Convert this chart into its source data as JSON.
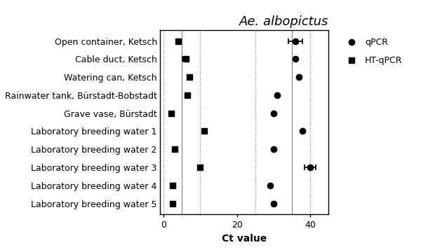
{
  "title": "Ae. albopictus",
  "xlabel": "Ct value",
  "categories": [
    "Open container, Ketsch",
    "Cable duct, Ketsch",
    "Watering can, Ketsch",
    "Rainwater tank, Bürstadt-Bobstadt",
    "Grave vase, Bürstadt",
    "Laboratory breeding water 1",
    "Laboratory breeding water 2",
    "Laboratory breeding water 3",
    "Laboratory breeding water 4",
    "Laboratory breeding water 5"
  ],
  "qpcr_values": [
    36.0,
    36.0,
    37.0,
    31.0,
    30.0,
    38.0,
    30.0,
    40.0,
    29.0,
    30.0
  ],
  "qpcr_xerr": [
    2.0,
    0.0,
    0.0,
    0.0,
    0.0,
    0.0,
    0.0,
    1.5,
    0.0,
    0.0
  ],
  "htqpcr_values": [
    4.0,
    6.0,
    7.0,
    6.5,
    2.0,
    11.0,
    3.0,
    10.0,
    2.5,
    2.5
  ],
  "htqpcr_xerr": [
    0.0,
    0.8,
    0.0,
    0.0,
    0.0,
    0.0,
    0.0,
    0.0,
    0.0,
    0.0
  ],
  "vlines_solid": [
    5.0,
    35.0
  ],
  "vlines_dotted": [
    0.0,
    10.0,
    25.0,
    40.0
  ],
  "xlim": [
    -1,
    45
  ],
  "xticks": [
    0,
    20,
    40
  ],
  "background_color": "#ffffff",
  "marker_color": "#000000",
  "legend_qpcr": "qPCR",
  "legend_htqpcr": "HT-qPCR",
  "title_fontsize": 13,
  "label_fontsize": 10,
  "tick_fontsize": 9,
  "ylabel_fontsize": 9
}
